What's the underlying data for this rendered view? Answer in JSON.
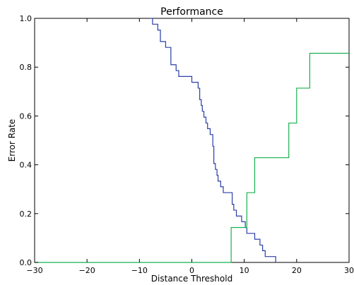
{
  "chart_data": {
    "type": "line",
    "title": "Performance",
    "xlabel": "Distance Threshold",
    "ylabel": "Error Rate",
    "xlim": [
      -30,
      30
    ],
    "ylim": [
      0.0,
      1.0
    ],
    "xticks": [
      -30,
      -20,
      -10,
      0,
      10,
      20,
      30
    ],
    "yticks": [
      0.0,
      0.2,
      0.4,
      0.6,
      0.8,
      1.0
    ],
    "xtick_labels": [
      "−30",
      "−20",
      "−10",
      "0",
      "10",
      "20",
      "30"
    ],
    "ytick_labels": [
      "0.0",
      "0.2",
      "0.4",
      "0.6",
      "0.8",
      "1.0"
    ],
    "grid": false,
    "legend": false,
    "series": [
      {
        "color": "#2b3ea6",
        "step": true,
        "x": [
          -8,
          -7.5,
          -6.5,
          -6,
          -5,
          -4,
          -3,
          -2.5,
          -2,
          0,
          1.2,
          1.5,
          1.8,
          2,
          2.3,
          2.7,
          3.0,
          3.5,
          4.0,
          4.2,
          4.5,
          4.8,
          5.0,
          5.5,
          6.0,
          6.5,
          7.7,
          8.0,
          8.5,
          9.5,
          10.2,
          10.5,
          12,
          13,
          13.5,
          14,
          16
        ],
        "y": [
          1.0,
          0.976,
          0.952,
          0.905,
          0.881,
          0.81,
          0.786,
          0.762,
          0.762,
          0.738,
          0.714,
          0.667,
          0.643,
          0.619,
          0.595,
          0.571,
          0.548,
          0.524,
          0.476,
          0.405,
          0.381,
          0.357,
          0.333,
          0.31,
          0.286,
          0.286,
          0.238,
          0.214,
          0.19,
          0.167,
          0.143,
          0.119,
          0.095,
          0.071,
          0.048,
          0.024,
          0.0
        ]
      },
      {
        "color": "#18b04f",
        "step": true,
        "x": [
          -30,
          7.5,
          10.5,
          12,
          18.5,
          20,
          22.5,
          30
        ],
        "y": [
          0.0,
          0.143,
          0.286,
          0.429,
          0.571,
          0.714,
          0.857,
          0.857
        ]
      }
    ]
  }
}
